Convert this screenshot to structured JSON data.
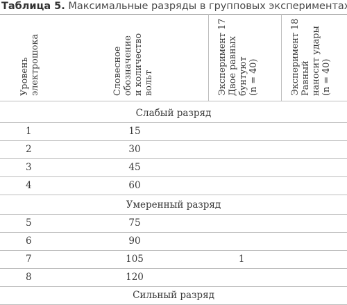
{
  "caption": {
    "number": "Таблица 5.",
    "title": "Максимальные разряды в групповых экспериментах"
  },
  "headers": {
    "level": [
      "Уровень",
      "электрошока"
    ],
    "verbal": [
      "Словесное",
      "обозначение",
      "и количество",
      "вольт"
    ],
    "exp17": [
      "Эксперимент 17",
      "Двое равных",
      "бунтуют",
      "(n = 40)"
    ],
    "exp18": [
      "Эксперимент 18",
      "Равный",
      "наносит удары",
      "(n = 40)"
    ]
  },
  "sections": [
    {
      "label": "Слабый разряд",
      "rows": [
        {
          "level": "1",
          "volts": "15",
          "exp17": "",
          "exp18": ""
        },
        {
          "level": "2",
          "volts": "30",
          "exp17": "",
          "exp18": ""
        },
        {
          "level": "3",
          "volts": "45",
          "exp17": "",
          "exp18": ""
        },
        {
          "level": "4",
          "volts": "60",
          "exp17": "",
          "exp18": ""
        }
      ]
    },
    {
      "label": "Умеренный разряд",
      "rows": [
        {
          "level": "5",
          "volts": "75",
          "exp17": "",
          "exp18": ""
        },
        {
          "level": "6",
          "volts": "90",
          "exp17": "",
          "exp18": ""
        },
        {
          "level": "7",
          "volts": "105",
          "exp17": "1",
          "exp18": ""
        },
        {
          "level": "8",
          "volts": "120",
          "exp17": "",
          "exp18": ""
        }
      ]
    },
    {
      "label": "Сильный разряд",
      "rows": []
    }
  ]
}
